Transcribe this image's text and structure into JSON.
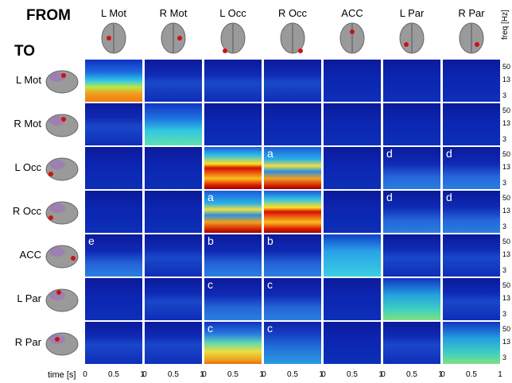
{
  "from_label": "FROM",
  "to_label": "TO",
  "regions": [
    "L Mot",
    "R Mot",
    "L Occ",
    "R Occ",
    "ACC",
    "L Par",
    "R Par"
  ],
  "freq_label": "freq [Hz]",
  "freq_ticks": [
    "50",
    "13",
    "3"
  ],
  "time_label": "time [s]",
  "time_ticks": [
    "0",
    "0.5",
    "1"
  ],
  "panel_letters": [
    [
      null,
      null,
      null,
      null,
      null,
      null,
      null
    ],
    [
      null,
      null,
      null,
      null,
      null,
      null,
      null
    ],
    [
      null,
      null,
      null,
      "a",
      null,
      "d",
      "d"
    ],
    [
      null,
      null,
      "a",
      null,
      null,
      "d",
      "d"
    ],
    [
      "e",
      null,
      "b",
      "b",
      null,
      null,
      null
    ],
    [
      null,
      null,
      "c",
      "c",
      null,
      null,
      null
    ],
    [
      null,
      null,
      "c",
      "c",
      null,
      null,
      null
    ]
  ]
}
